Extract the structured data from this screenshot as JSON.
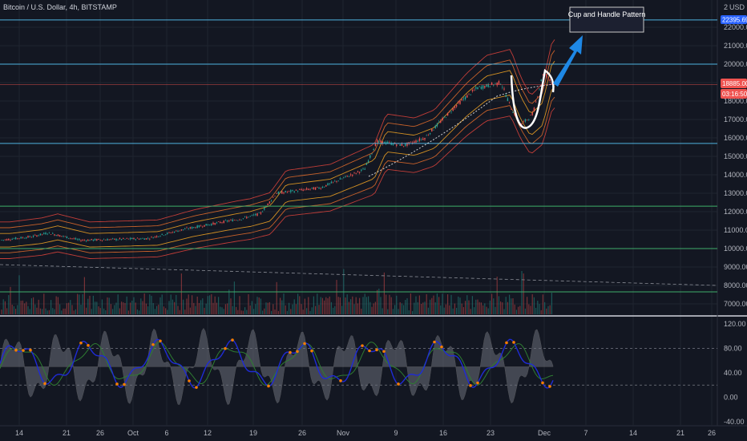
{
  "symbol_title": "Bitcoin / U.S. Dollar, 4h, BITSTAMP",
  "currency": "USD",
  "colors": {
    "background": "#131722",
    "grid": "#1f2430",
    "candle_up": "#26a69a",
    "candle_down": "#ef5350",
    "horizontal_line_blue": "#4fb3e0",
    "horizontal_line_green": "#3fae6a",
    "price_badge": "#ef5350",
    "target_badge": "#2962ff",
    "arrow": "#1e88e5",
    "band_outer": "#e0443c",
    "band_middle": "#f5a623",
    "band_inner": "#e86f2b",
    "rsi_line": "#1f2bd6",
    "osc_fill": "#6b6f7a"
  },
  "annotation": {
    "label": "Cup and Handle Pattern"
  },
  "badges": {
    "target_price": "22395.69",
    "current_price": "18885.00",
    "countdown": "03:16:50"
  },
  "price_axis": {
    "label_top": "2",
    "ticks": [
      "22000.00",
      "21000.00",
      "20000.00",
      "19000.00",
      "18000.00",
      "17000.00",
      "16000.00",
      "15000.00",
      "14000.00",
      "13000.00",
      "12000.00",
      "11000.00",
      "10000.00",
      "9000.00",
      "8000.00",
      "7000.00"
    ]
  },
  "osc_axis": {
    "ticks": [
      "120.00",
      "80.00",
      "40.00",
      "0.00",
      "-40.00"
    ]
  },
  "time_axis": {
    "ticks": [
      "14",
      "21",
      "26",
      "Oct",
      "6",
      "12",
      "19",
      "26",
      "Nov",
      "9",
      "16",
      "23",
      "Dec",
      "7",
      "14",
      "21",
      "26"
    ]
  },
  "chart_data": {
    "type": "candlestick",
    "title": "Bitcoin / U.S. Dollar, 4h, BITSTAMP",
    "x_ticks": [
      "14",
      "21",
      "26",
      "Oct",
      "6",
      "12",
      "19",
      "26",
      "Nov",
      "9",
      "16",
      "23",
      "Dec",
      "7",
      "14",
      "21",
      "26"
    ],
    "ylim": [
      6500,
      23000
    ],
    "y_ticks": [
      7000,
      8000,
      9000,
      10000,
      11000,
      12000,
      13000,
      14000,
      15000,
      16000,
      17000,
      18000,
      19000,
      20000,
      21000,
      22000
    ],
    "approximate_closes": [
      {
        "x": "14",
        "y": 10600
      },
      {
        "x": "21",
        "y": 10900
      },
      {
        "x": "26",
        "y": 10700
      },
      {
        "x": "Oct",
        "y": 10700
      },
      {
        "x": "6",
        "y": 10700
      },
      {
        "x": "12",
        "y": 11400
      },
      {
        "x": "19",
        "y": 11700
      },
      {
        "x": "26",
        "y": 13200
      },
      {
        "x": "Nov",
        "y": 13600
      },
      {
        "x": "9",
        "y": 15300
      },
      {
        "x": "16",
        "y": 16000
      },
      {
        "x": "23",
        "y": 18500
      },
      {
        "x": "Dec",
        "y": 18885
      }
    ],
    "horizontal_levels": [
      22395.69,
      20000,
      18885,
      15700,
      12300,
      10000,
      7600
    ],
    "oscillator": {
      "ylim": [
        -40,
        130
      ],
      "levels": [
        80,
        20
      ]
    },
    "annotation": "Cup and Handle Pattern"
  }
}
